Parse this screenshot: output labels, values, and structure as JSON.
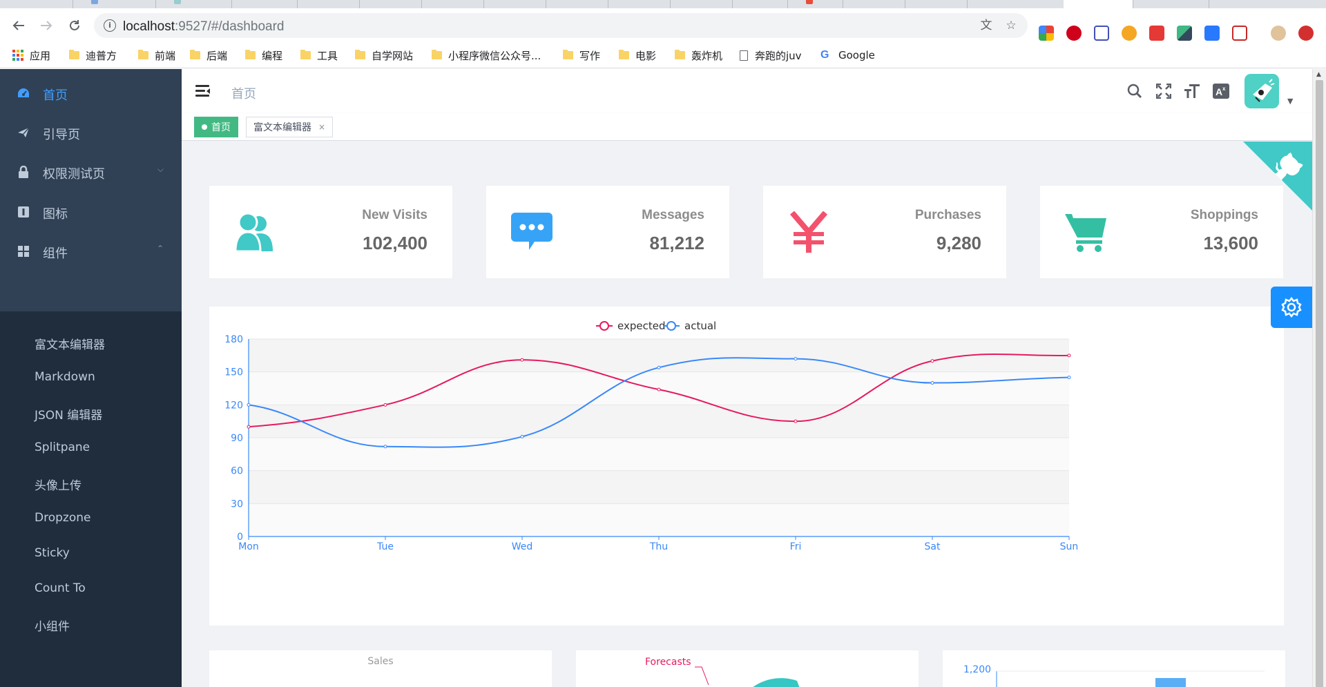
{
  "browser": {
    "url_host": "localhost",
    "url_rest": ":9527/#/dashboard",
    "bookmarks": [
      {
        "label": "应用",
        "type": "apps"
      },
      {
        "label": "迪普方",
        "type": "folder"
      },
      {
        "label": "前端",
        "type": "folder"
      },
      {
        "label": "后端",
        "type": "folder"
      },
      {
        "label": "编程",
        "type": "folder"
      },
      {
        "label": "工具",
        "type": "folder"
      },
      {
        "label": "自学网站",
        "type": "folder"
      },
      {
        "label": "小程序微信公众号...",
        "type": "folder"
      },
      {
        "label": "写作",
        "type": "folder"
      },
      {
        "label": "电影",
        "type": "folder"
      },
      {
        "label": "轰炸机",
        "type": "folder"
      },
      {
        "label": "奔跑的juv",
        "type": "page"
      },
      {
        "label": "Google",
        "type": "google"
      }
    ]
  },
  "sidebar": {
    "menu": [
      {
        "label": "首页",
        "icon": "dashboard-icon",
        "active": true
      },
      {
        "label": "引导页",
        "icon": "guide-icon"
      },
      {
        "label": "权限测试页",
        "icon": "lock-icon",
        "expand": "down"
      },
      {
        "label": "图标",
        "icon": "icon-icon"
      },
      {
        "label": "组件",
        "icon": "component-icon",
        "expand": "up"
      }
    ],
    "submenu": [
      "富文本编辑器",
      "Markdown",
      "JSON 编辑器",
      "Splitpane",
      "头像上传",
      "Dropzone",
      "Sticky",
      "Count To",
      "小组件"
    ]
  },
  "navbar": {
    "breadcrumb": "首页"
  },
  "tags": [
    {
      "label": "首页",
      "active": true
    },
    {
      "label": "富文本编辑器",
      "active": false
    }
  ],
  "panels": [
    {
      "title": "New Visits",
      "value": "102,400",
      "icon": "peoples-icon",
      "color": "#40c9c6"
    },
    {
      "title": "Messages",
      "value": "81,212",
      "icon": "message-icon",
      "color": "#36a3f7"
    },
    {
      "title": "Purchases",
      "value": "9,280",
      "icon": "money-icon",
      "color": "#f4516c"
    },
    {
      "title": "Shoppings",
      "value": "13,600",
      "icon": "shopping-icon",
      "color": "#34bfa3"
    }
  ],
  "chart_data": {
    "type": "line",
    "categories": [
      "Mon",
      "Tue",
      "Wed",
      "Thu",
      "Fri",
      "Sat",
      "Sun"
    ],
    "series": [
      {
        "name": "expected",
        "values": [
          100,
          120,
          161,
          134,
          105,
          160,
          165
        ],
        "color": "#e6195e"
      },
      {
        "name": "actual",
        "values": [
          120,
          82,
          91,
          154,
          162,
          140,
          145
        ],
        "color": "#3888fa"
      }
    ],
    "ylim": [
      0,
      180
    ],
    "yticks": [
      0,
      30,
      60,
      90,
      120,
      150,
      180
    ],
    "legend_position": "top-center",
    "smooth": true
  },
  "bottom": {
    "sales_label": "Sales",
    "forecasts_label": "Forecasts",
    "bar_tick": "1,200"
  }
}
